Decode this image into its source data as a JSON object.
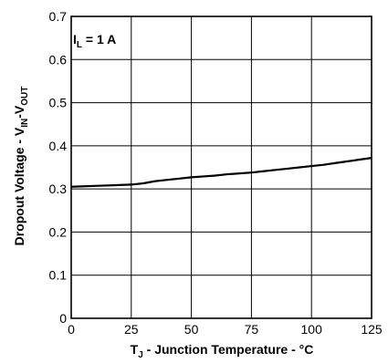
{
  "chart_data": {
    "type": "line",
    "title": "",
    "xlabel": {
      "main": "T",
      "sub": "J",
      "rest": " - Junction Temperature - °C"
    },
    "ylabel": {
      "prefix": "Dropout Voltage - V",
      "sub1": "IN",
      "mid": "-V",
      "sub2": "OUT"
    },
    "annotation": {
      "main": "I",
      "sub": "L",
      "rest": " = 1 A"
    },
    "xlim": [
      0,
      125
    ],
    "ylim": [
      0,
      0.7
    ],
    "xticks": [
      0,
      25,
      50,
      75,
      100,
      125
    ],
    "xtick_labels": [
      "0",
      "25",
      "50",
      "75",
      "100",
      "125"
    ],
    "yticks": [
      0,
      0.1,
      0.2,
      0.3,
      0.4,
      0.5,
      0.6,
      0.7
    ],
    "ytick_labels": [
      "0",
      "0.1",
      "0.2",
      "0.3",
      "0.4",
      "0.5",
      "0.6",
      "0.7"
    ],
    "grid": true,
    "line_color": "#000000",
    "grid_color": "#000000",
    "series": [
      {
        "x": [
          0,
          10,
          20,
          25,
          30,
          35,
          40,
          45,
          50,
          55,
          60,
          65,
          70,
          75,
          80,
          85,
          90,
          95,
          100,
          105,
          110,
          115,
          120,
          125
        ],
        "y": [
          0.305,
          0.307,
          0.309,
          0.31,
          0.313,
          0.318,
          0.321,
          0.324,
          0.327,
          0.329,
          0.331,
          0.334,
          0.336,
          0.338,
          0.341,
          0.344,
          0.347,
          0.35,
          0.353,
          0.356,
          0.36,
          0.364,
          0.368,
          0.372
        ]
      }
    ]
  }
}
